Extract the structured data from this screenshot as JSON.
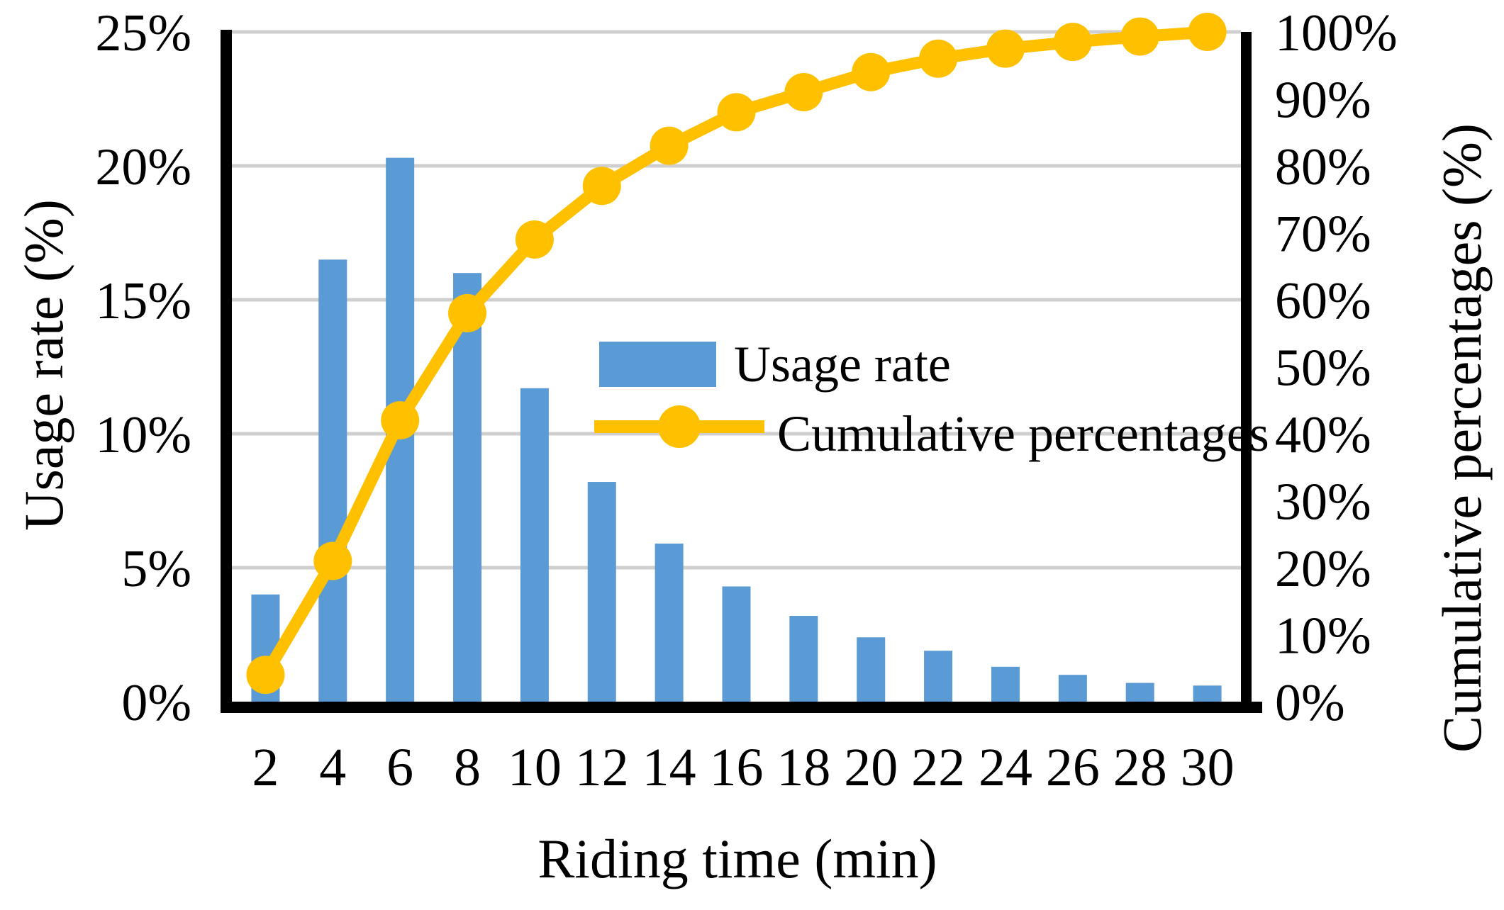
{
  "chart_data": {
    "type": "bar",
    "subtype": "pareto-combo-bar-line",
    "title": "",
    "categories": [
      2,
      4,
      6,
      8,
      10,
      12,
      14,
      16,
      18,
      20,
      22,
      24,
      26,
      28,
      30
    ],
    "series": [
      {
        "name": "Usage rate",
        "type": "bar",
        "axis": "left",
        "color": "#5B9BD5",
        "values": [
          4.0,
          16.5,
          20.3,
          16.0,
          11.7,
          8.2,
          5.9,
          4.3,
          3.2,
          2.4,
          1.9,
          1.3,
          1.0,
          0.7,
          0.6
        ]
      },
      {
        "name": "Cumulative percentages",
        "type": "line",
        "axis": "right",
        "color": "#FFC000",
        "marker": "circle",
        "values": [
          4,
          21,
          42,
          58,
          69,
          77,
          83,
          88,
          91,
          94,
          96,
          97.5,
          98.5,
          99.3,
          100
        ]
      }
    ],
    "xlabel": "Riding time (min)",
    "ylabel_left": "Usage rate (%)",
    "ylabel_right": "Cumulative percentages (%)",
    "y_left_axis": {
      "min": 0,
      "max": 25,
      "step": 5,
      "tick_labels": [
        "0%",
        "5%",
        "10%",
        "15%",
        "20%",
        "25%"
      ]
    },
    "y_right_axis": {
      "min": 0,
      "max": 100,
      "step": 10,
      "tick_labels": [
        "0%",
        "10%",
        "20%",
        "30%",
        "40%",
        "50%",
        "60%",
        "70%",
        "80%",
        "90%",
        "100%"
      ]
    },
    "grid": "horizontal gridlines at every left-axis tick (5%)",
    "legend_position": "inside plot, center-right",
    "colors": {
      "bar": "#5B9BD5",
      "line": "#FFC000",
      "gridline": "#cfcfcf",
      "axis": "#000000",
      "text": "#000000",
      "background": "#ffffff"
    }
  }
}
